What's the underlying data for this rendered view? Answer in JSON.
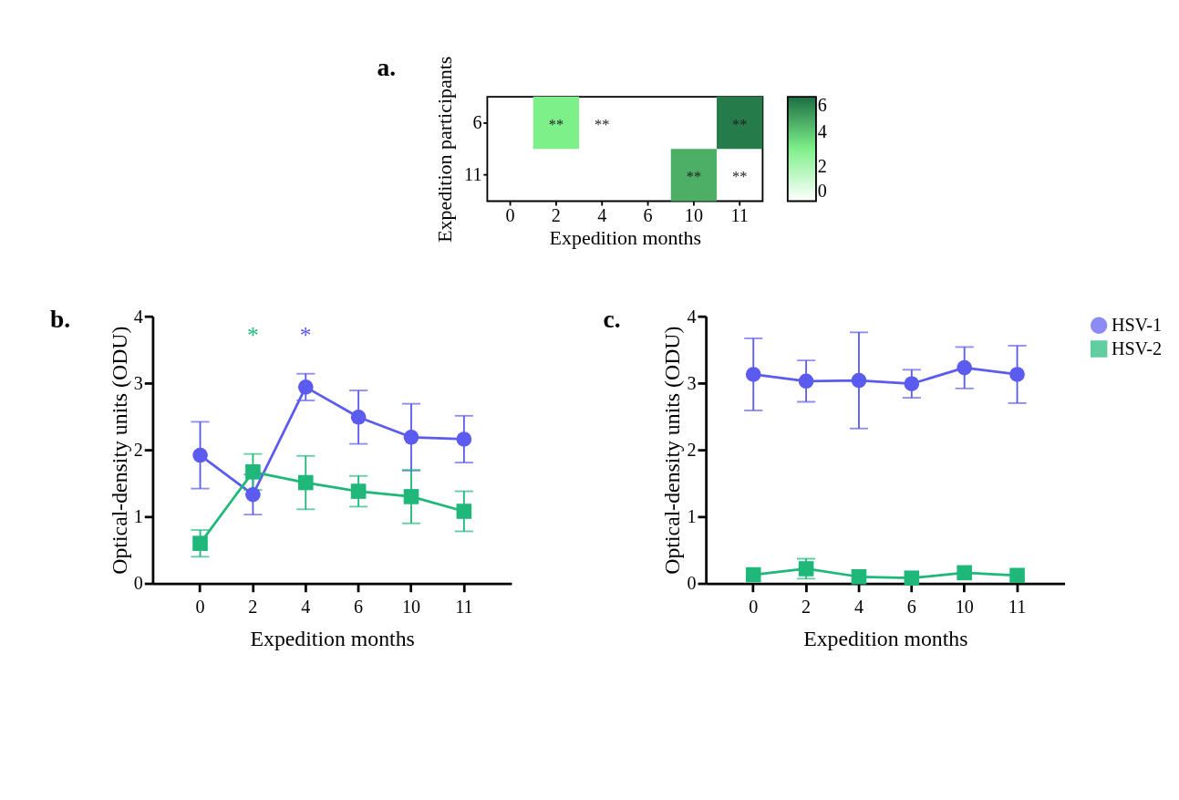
{
  "chart_data": [
    {
      "type": "heatmap",
      "title": "a.",
      "xlabel": "Expedition months",
      "ylabel": "Expedition participants",
      "categories": [
        "0",
        "2",
        "4",
        "6",
        "10",
        "11"
      ],
      "y_categories": [
        "6",
        "11"
      ],
      "cells": [
        [
          null,
          3,
          null,
          null,
          null,
          5.7
        ],
        [
          null,
          null,
          null,
          null,
          4.5,
          null
        ]
      ],
      "cell_labels": [
        [
          null,
          "**",
          "**",
          null,
          null,
          "**"
        ],
        [
          null,
          null,
          null,
          null,
          "**",
          "**"
        ]
      ],
      "clim": [
        0,
        6
      ],
      "cticks": [
        0,
        2,
        4,
        6
      ]
    },
    {
      "type": "line",
      "title": "b.",
      "xlabel": "Expedition months",
      "ylabel": "Optical-density units (ODU)",
      "categories": [
        "0",
        "2",
        "4",
        "6",
        "10",
        "11"
      ],
      "ylim": [
        0,
        4
      ],
      "yticks": [
        0,
        1,
        2,
        3,
        4
      ],
      "grid": false,
      "series": [
        {
          "color": "#5b5bef",
          "marker": "circle",
          "values": [
            1.92,
            1.33,
            2.94,
            2.49,
            2.19,
            2.16
          ],
          "errors": [
            0.5,
            0.3,
            0.2,
            0.4,
            0.5,
            0.35
          ]
        },
        {
          "color": "#1fb87a",
          "marker": "square",
          "values": [
            0.6,
            1.67,
            1.51,
            1.38,
            1.3,
            1.08
          ],
          "errors": [
            0.2,
            0.27,
            0.4,
            0.23,
            0.4,
            0.3
          ]
        }
      ],
      "annotations": [
        "*",
        "*"
      ]
    },
    {
      "type": "line",
      "title": "c.",
      "xlabel": "Expedition months",
      "ylabel": "Optical-density units (ODU)",
      "categories": [
        "0",
        "2",
        "4",
        "6",
        "10",
        "11"
      ],
      "ylim": [
        0,
        4
      ],
      "yticks": [
        0,
        1,
        2,
        3,
        4
      ],
      "grid": false,
      "legend": "right",
      "series": [
        {
          "name": "HSV-1",
          "color": "#5b5bef",
          "marker": "circle",
          "values": [
            3.13,
            3.03,
            3.04,
            2.99,
            3.23,
            3.13
          ],
          "errors": [
            0.54,
            0.31,
            0.72,
            0.21,
            0.31,
            0.43
          ]
        },
        {
          "name": "HSV-2",
          "color": "#1fb87a",
          "marker": "square",
          "values": [
            0.13,
            0.22,
            0.1,
            0.08,
            0.16,
            0.12
          ],
          "errors": [
            null,
            0.15,
            null,
            null,
            null,
            null
          ]
        }
      ]
    }
  ]
}
